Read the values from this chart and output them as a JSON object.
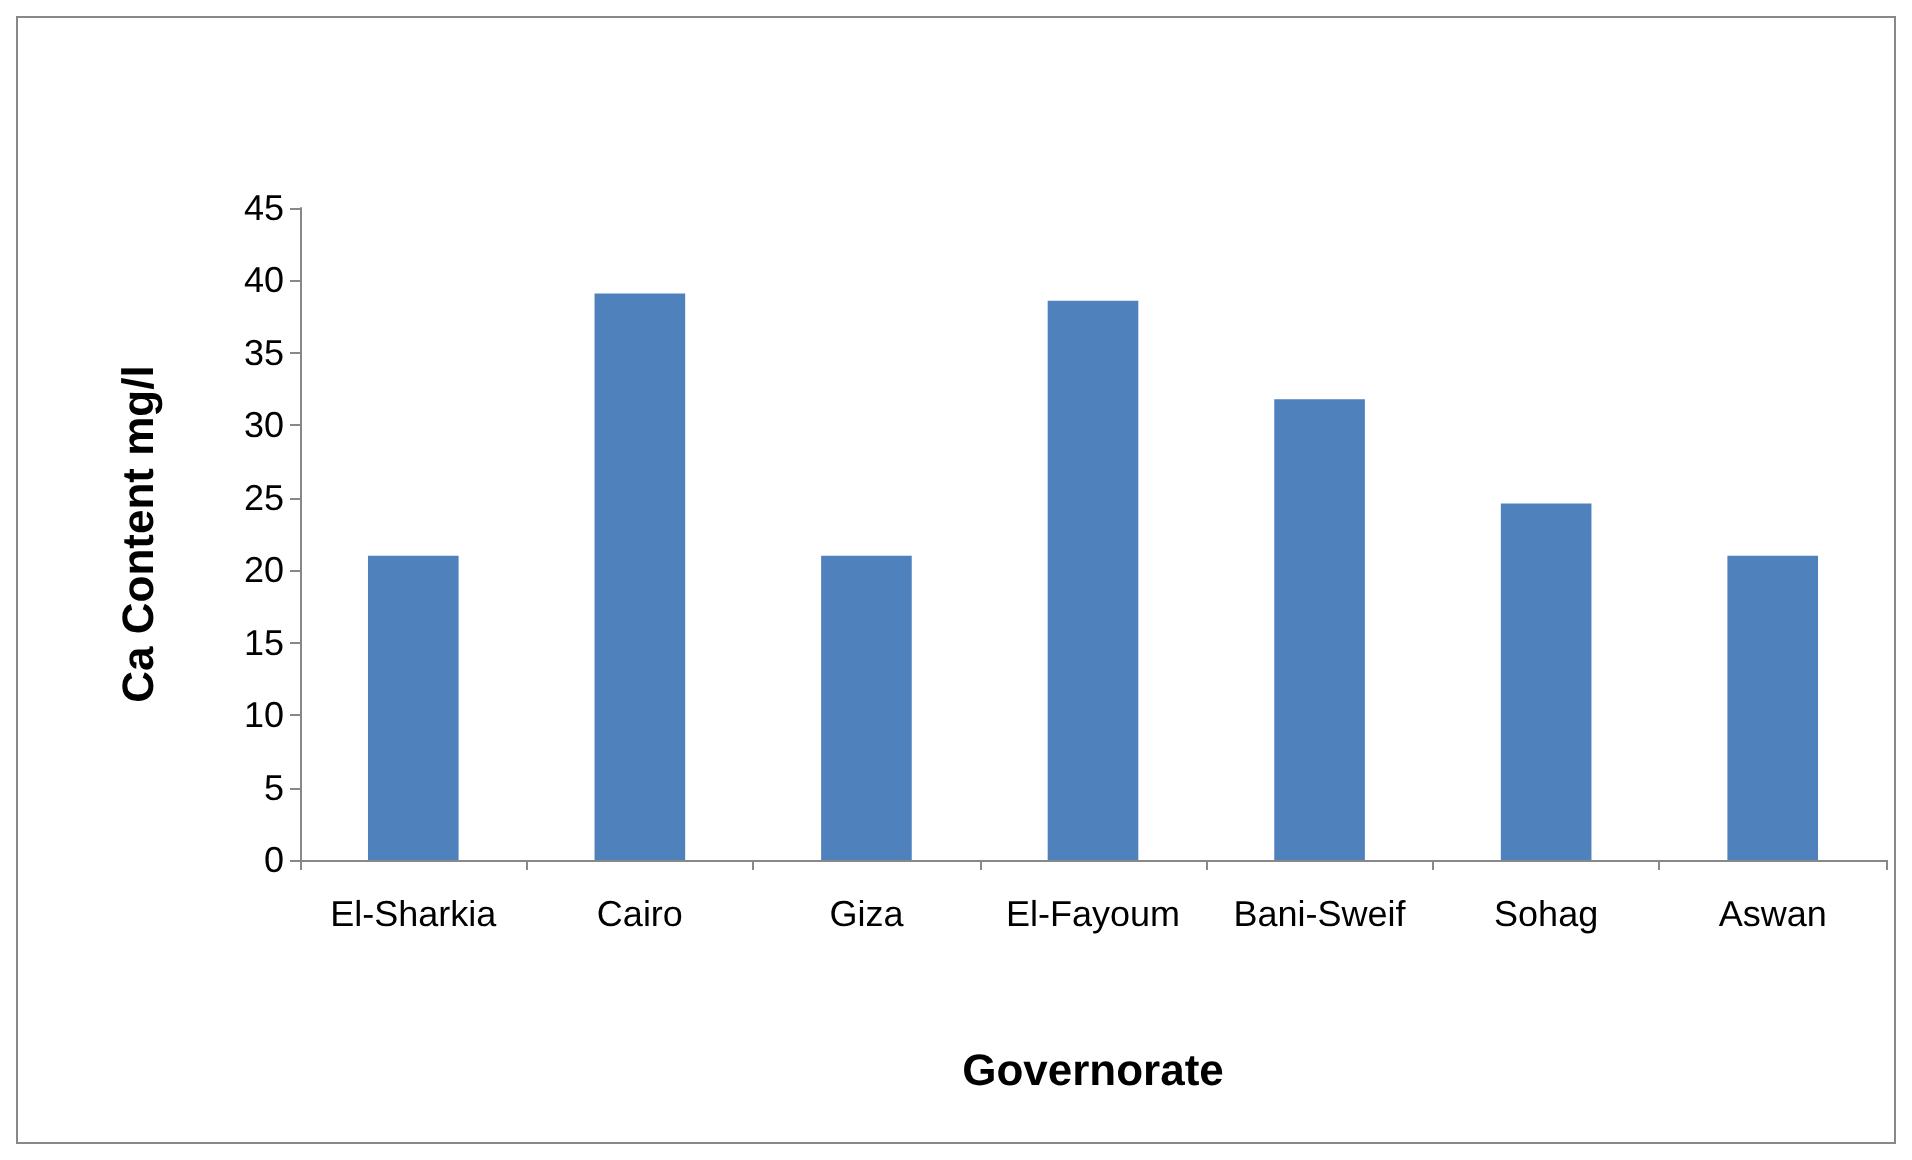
{
  "chart_data": {
    "type": "bar",
    "xlabel": "Governorate",
    "ylabel": "Ca Content mg/l",
    "categories": [
      "El-Sharkia",
      "Cairo",
      "Giza",
      "El-Fayoum",
      "Bani-Sweif",
      "Sohag",
      "Aswan"
    ],
    "values": [
      21,
      39.1,
      21,
      38.6,
      31.8,
      24.6,
      21
    ],
    "color": "#4f81bd",
    "ylim": [
      0,
      45
    ],
    "yticks": [
      0,
      5,
      10,
      15,
      20,
      25,
      30,
      35,
      40,
      45
    ],
    "grid": false
  }
}
